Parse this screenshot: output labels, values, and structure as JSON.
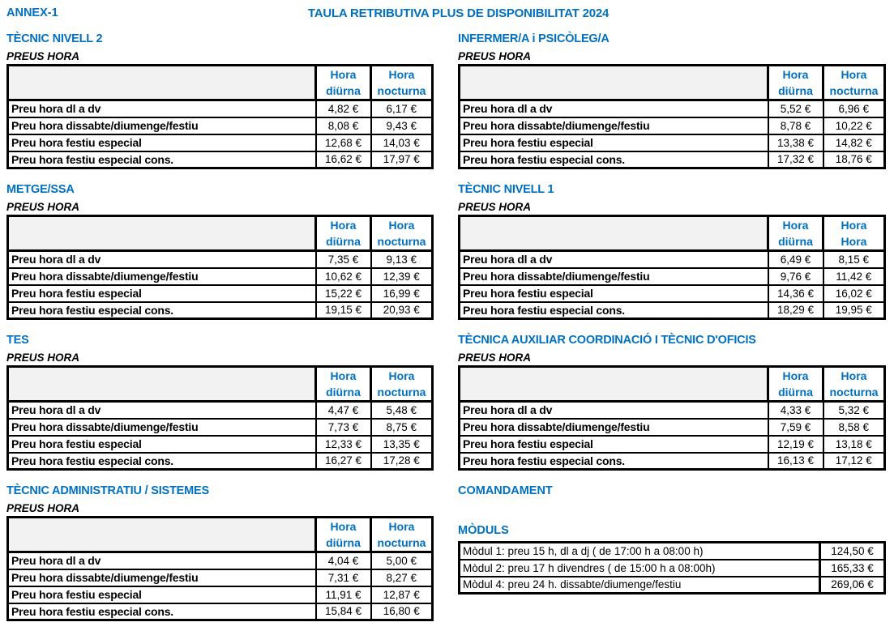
{
  "header": {
    "annex": "ANNEX-1",
    "title": "TAULA RETRIBUTIVA PLUS DE DISPONIBILITAT 2024"
  },
  "colors": {
    "accent_blue": "#0070C0",
    "header_fill": "#F2F2F2",
    "border_black": "#000000"
  },
  "sections": [
    {
      "title": "TÈCNIC NIVELL 2",
      "subtitle": "PREUS HORA",
      "columns": {
        "c1l1": "Hora",
        "c1l2": "diürna",
        "c2l1": "Hora",
        "c2l2": "nocturna"
      },
      "rows": [
        {
          "label": "Preu hora dl a dv",
          "diurna": "4,82 €",
          "nocturna": "6,17 €"
        },
        {
          "label": "Preu hora dissabte/diumenge/festiu",
          "diurna": "8,08 €",
          "nocturna": "9,43 €"
        },
        {
          "label": "Preu hora festiu especial",
          "diurna": "12,68 €",
          "nocturna": "14,03 €"
        },
        {
          "label": "Preu hora festiu especial cons.",
          "diurna": "16,62 €",
          "nocturna": "17,97 €"
        }
      ]
    },
    {
      "title": "INFERMER/A i PSICÒLEG/A",
      "subtitle": "PREUS HORA",
      "columns": {
        "c1l1": "Hora",
        "c1l2": "diürna",
        "c2l1": "Hora",
        "c2l2": "nocturna"
      },
      "rows": [
        {
          "label": "Preu hora dl a dv",
          "diurna": "5,52 €",
          "nocturna": "6,96 €"
        },
        {
          "label": "Preu hora dissabte/diumenge/festiu",
          "diurna": "8,78 €",
          "nocturna": "10,22 €"
        },
        {
          "label": "Preu hora festiu especial",
          "diurna": "13,38 €",
          "nocturna": "14,82 €"
        },
        {
          "label": "Preu hora festiu especial cons.",
          "diurna": "17,32 €",
          "nocturna": "18,76 €"
        }
      ]
    },
    {
      "title": "METGE/SSA",
      "subtitle": "PREUS HORA",
      "columns": {
        "c1l1": "Hora",
        "c1l2": "diürna",
        "c2l1": "Hora",
        "c2l2": "nocturna"
      },
      "rows": [
        {
          "label": "Preu hora dl a dv",
          "diurna": "7,35 €",
          "nocturna": "9,13 €"
        },
        {
          "label": "Preu hora dissabte/diumenge/festiu",
          "diurna": "10,62 €",
          "nocturna": "12,39 €"
        },
        {
          "label": "Preu hora festiu especial",
          "diurna": "15,22 €",
          "nocturna": "16,99 €"
        },
        {
          "label": "Preu hora festiu especial cons.",
          "diurna": "19,15 €",
          "nocturna": "20,93 €"
        }
      ]
    },
    {
      "title": "TÈCNIC NIVELL 1",
      "subtitle": "PREUS HORA",
      "columns": {
        "c1l1": "Hora",
        "c1l2": "diürna",
        "c2l1": "Hora",
        "c2l2": "Hora"
      },
      "rows": [
        {
          "label": "Preu hora dl a dv",
          "diurna": "6,49 €",
          "nocturna": "8,15 €"
        },
        {
          "label": "Preu hora dissabte/diumenge/festiu",
          "diurna": "9,76 €",
          "nocturna": "11,42 €"
        },
        {
          "label": "Preu hora festiu especial",
          "diurna": "14,36 €",
          "nocturna": "16,02 €"
        },
        {
          "label": "Preu hora festiu especial cons.",
          "diurna": "18,29 €",
          "nocturna": "19,95 €"
        }
      ]
    },
    {
      "title": "TES",
      "subtitle": "PREUS HORA",
      "columns": {
        "c1l1": "Hora",
        "c1l2": "diürna",
        "c2l1": "Hora",
        "c2l2": "nocturna"
      },
      "rows": [
        {
          "label": "Preu hora dl a dv",
          "diurna": "4,47 €",
          "nocturna": "5,48 €"
        },
        {
          "label": "Preu hora dissabte/diumenge/festiu",
          "diurna": "7,73 €",
          "nocturna": "8,75 €"
        },
        {
          "label": "Preu hora festiu especial",
          "diurna": "12,33 €",
          "nocturna": "13,35 €"
        },
        {
          "label": "Preu hora festiu especial cons.",
          "diurna": "16,27 €",
          "nocturna": "17,28 €"
        }
      ]
    },
    {
      "title": "TÈCNICA AUXILIAR COORDINACIÓ I TÈCNIC D'OFICIS",
      "subtitle": "PREUS HORA",
      "columns": {
        "c1l1": "Hora",
        "c1l2": "diürna",
        "c2l1": "Hora",
        "c2l2": "nocturna"
      },
      "rows": [
        {
          "label": "Preu hora dl a dv",
          "diurna": "4,33 €",
          "nocturna": "5,32 €"
        },
        {
          "label": "Preu hora dissabte/diumenge/festiu",
          "diurna": "7,59 €",
          "nocturna": "8,58 €"
        },
        {
          "label": "Preu hora festiu especial",
          "diurna": "12,19 €",
          "nocturna": "13,18 €"
        },
        {
          "label": "Preu hora festiu especial cons.",
          "diurna": "16,13 €",
          "nocturna": "17,12 €"
        }
      ]
    },
    {
      "title": "TÈCNIC ADMINISTRATIU / SISTEMES",
      "subtitle": "PREUS HORA",
      "columns": {
        "c1l1": "Hora",
        "c1l2": "diürna",
        "c2l1": "Hora",
        "c2l2": "nocturna"
      },
      "rows": [
        {
          "label": "Preu hora dl a dv",
          "diurna": "4,04 €",
          "nocturna": "5,00 €"
        },
        {
          "label": "Preu hora dissabte/diumenge/festiu",
          "diurna": "7,31 €",
          "nocturna": "8,27 €"
        },
        {
          "label": "Preu hora festiu especial",
          "diurna": "11,91 €",
          "nocturna": "12,87 €"
        },
        {
          "label": "Preu hora festiu especial cons.",
          "diurna": "15,84 €",
          "nocturna": "16,80 €"
        }
      ]
    }
  ],
  "comandament": {
    "title": "COMANDAMENT"
  },
  "moduls": {
    "title": "MÒDULS",
    "rows": [
      {
        "label": "Mòdul 1: preu 15 h, dl a dj ( de 17:00 h a 08:00 h)",
        "value": "124,50 €"
      },
      {
        "label": "Mòdul 2: preu 17 h divendres ( de 15:00 h a 08:00h)",
        "value": "165,33 €"
      },
      {
        "label": "Mòdul 4: preu 24 h. dissabte/diumenge/festiu",
        "value": "269,06 €"
      }
    ]
  }
}
